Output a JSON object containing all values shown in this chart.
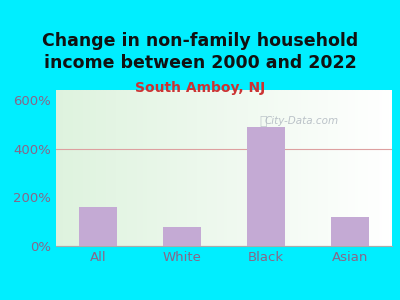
{
  "title": "Change in non-family household\nincome between 2000 and 2022",
  "subtitle": "South Amboy, NJ",
  "categories": [
    "All",
    "White",
    "Black",
    "Asian"
  ],
  "values": [
    160,
    80,
    490,
    120
  ],
  "bar_color": "#c4aad4",
  "title_fontsize": 12.5,
  "subtitle_fontsize": 10,
  "subtitle_color": "#cc3333",
  "title_color": "#111111",
  "background_outer": "#00eeff",
  "background_inner": "#dff2d8",
  "tick_color": "#886688",
  "label_color": "#886688",
  "yticks": [
    0,
    200,
    400,
    600
  ],
  "ylim": [
    0,
    640
  ],
  "grid_color": "#dda0a0",
  "watermark": "City-Data.com"
}
